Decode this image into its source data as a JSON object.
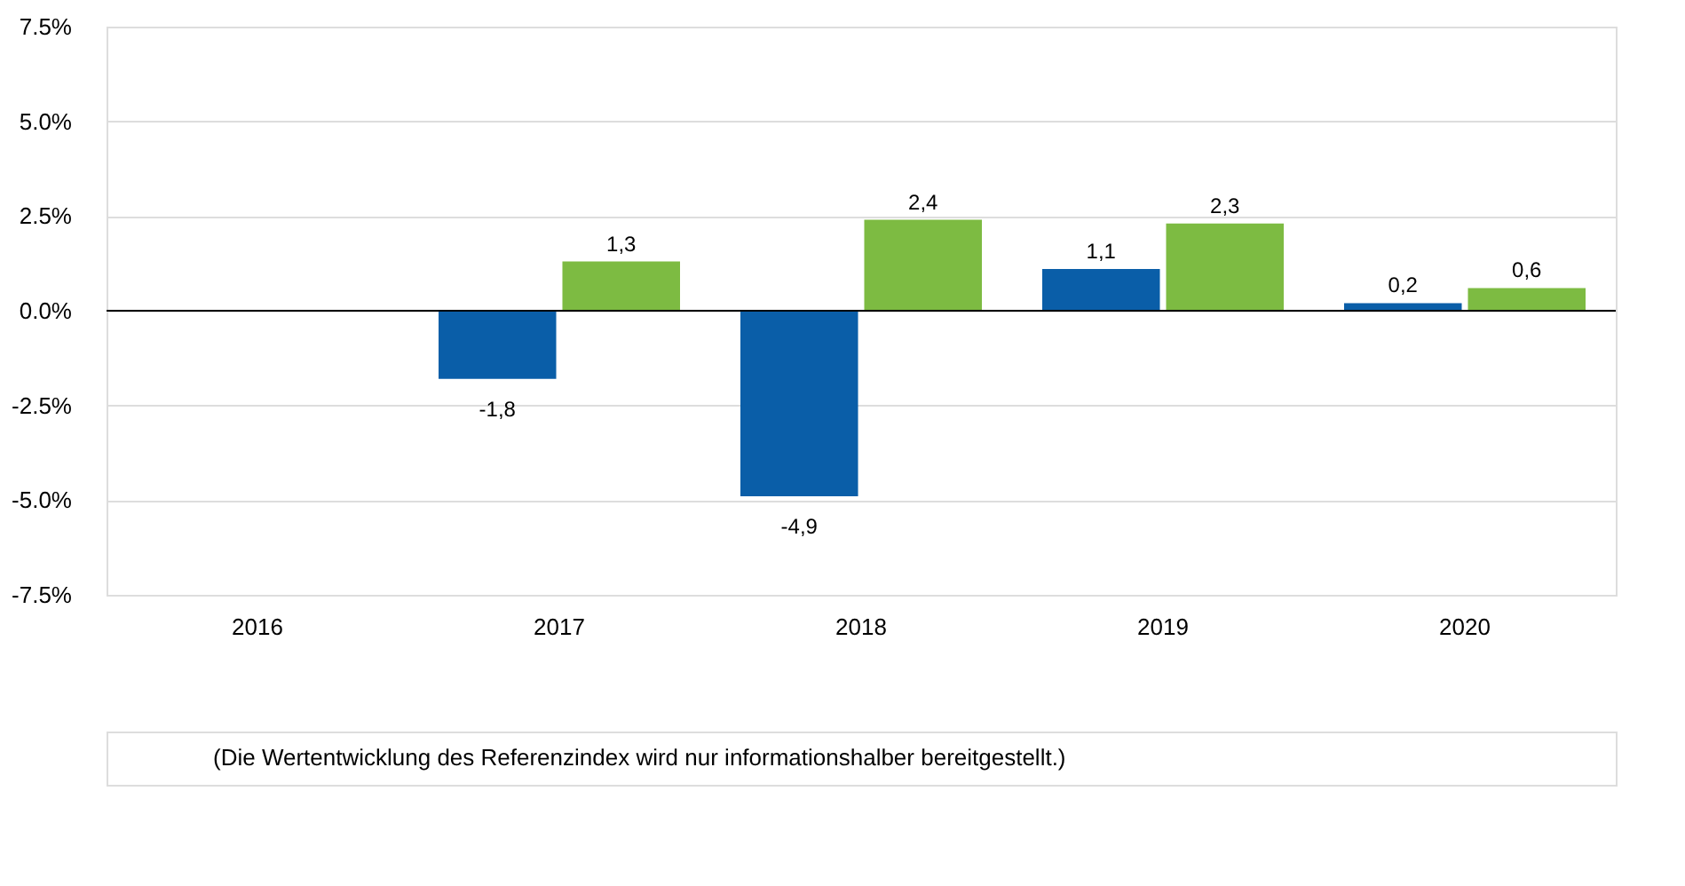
{
  "chart_data": {
    "type": "bar",
    "categories": [
      "2016",
      "2017",
      "2018",
      "2019",
      "2020"
    ],
    "series": [
      {
        "color": "#0a5ea8",
        "values": [
          null,
          -1.8,
          -4.9,
          1.1,
          0.2
        ],
        "value_labels": [
          null,
          "-1,8",
          "-4,9",
          "1,1",
          "0,2"
        ]
      },
      {
        "color": "#7dbb42",
        "values": [
          null,
          1.3,
          2.4,
          2.3,
          0.6
        ],
        "value_labels": [
          null,
          "1,3",
          "2,4",
          "2,3",
          "0,6"
        ]
      }
    ],
    "ylim": [
      -7.5,
      7.5
    ],
    "yticks": [
      {
        "value": -7.5,
        "label": "-7.5%"
      },
      {
        "value": -5,
        "label": "-5.0%"
      },
      {
        "value": -2.5,
        "label": "-2.5%"
      },
      {
        "value": 0,
        "label": "0.0%"
      },
      {
        "value": 2.5,
        "label": "2.5%"
      },
      {
        "value": 5,
        "label": "5.0%"
      },
      {
        "value": 7.5,
        "label": "7.5%"
      }
    ],
    "grid": "y",
    "ref_lines": [
      {
        "axis": "y",
        "value": 0,
        "color": "#000000"
      }
    ],
    "annotations": [
      "(Die Wertentwicklung des Referenzindex wird nur informationshalber bereitgestellt.)"
    ]
  }
}
